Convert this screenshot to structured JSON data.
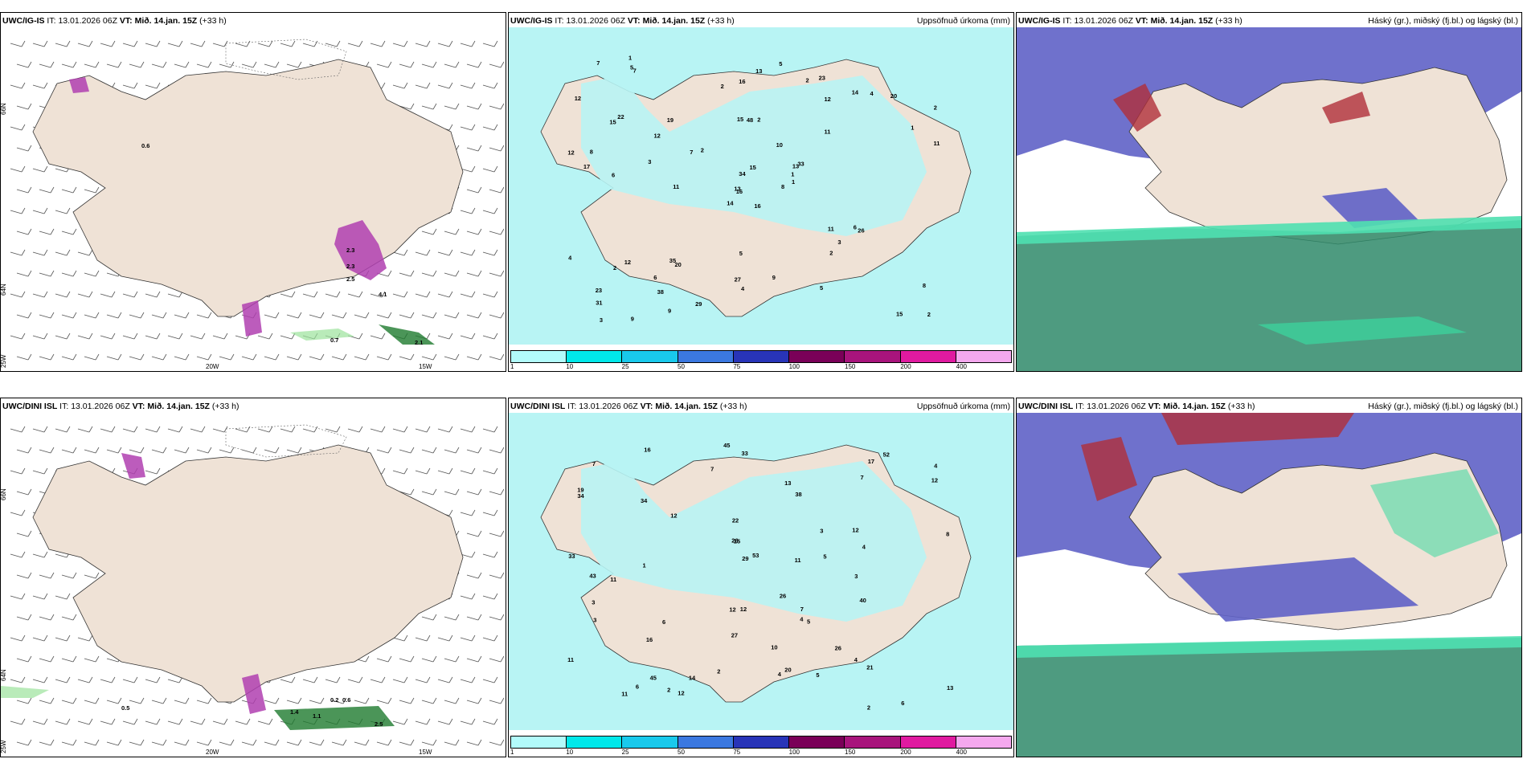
{
  "rows": [
    {
      "model": "UWC/IG-IS",
      "it_label": "IT:",
      "it_value": "13.01.2026 06Z",
      "vt_label": "VT:",
      "vt_value": "Mið. 14.jan. 15Z",
      "lead": "(+33 h)",
      "precip_values": [
        "16",
        "15",
        "16",
        "23",
        "13",
        "20",
        "23",
        "2",
        "12",
        "8",
        "7",
        "2",
        "6",
        "2",
        "14",
        "11",
        "9",
        "15",
        "10",
        "12",
        "2",
        "31",
        "38",
        "48",
        "33",
        "26",
        "22",
        "16",
        "17",
        "11",
        "11",
        "13",
        "27",
        "34",
        "19",
        "14",
        "35",
        "15",
        "8",
        "6",
        "5",
        "7",
        "3",
        "2",
        "9",
        "12",
        "1",
        "3",
        "4",
        "1",
        "2",
        "1",
        "12",
        "3",
        "5",
        "6",
        "5",
        "7",
        "9",
        "20",
        "13",
        "11",
        "8",
        "12",
        "4",
        "1",
        "2",
        "2",
        "15",
        "4",
        "5",
        "29"
      ],
      "wind_labels": [
        "0.7",
        "2.1",
        "2.3",
        "2.3",
        "2.5",
        "4.1",
        "0.6"
      ],
      "lat_ticks": [
        "66N",
        "64N",
        "25W"
      ],
      "lon_ticks": [
        "20W",
        "15W"
      ]
    },
    {
      "model": "UWC/DINI ISL",
      "it_label": "IT:",
      "it_value": "13.01.2026 06Z",
      "vt_label": "VT:",
      "vt_value": "Mið. 14.jan. 15Z",
      "lead": "(+33 h)",
      "precip_values": [
        "33",
        "33",
        "12",
        "4",
        "19",
        "6",
        "11",
        "38",
        "22",
        "52",
        "53",
        "40",
        "45",
        "34",
        "34",
        "16",
        "20",
        "43",
        "26",
        "27",
        "26",
        "21",
        "12",
        "15",
        "45",
        "29",
        "7",
        "16",
        "12",
        "4",
        "3",
        "2",
        "11",
        "11",
        "2",
        "3",
        "4",
        "7",
        "14",
        "12",
        "10",
        "5",
        "13",
        "8",
        "12",
        "6",
        "7",
        "11",
        "2",
        "1",
        "3",
        "4",
        "5",
        "3",
        "5",
        "7",
        "4",
        "26",
        "17",
        "13",
        "12",
        "6"
      ],
      "wind_labels": [
        "0.5",
        "0.2",
        "0.6",
        "1.4",
        "1.1",
        "2.5"
      ],
      "lat_ticks": [
        "66N",
        "64N",
        "25W"
      ],
      "lon_ticks": [
        "20W",
        "15W"
      ]
    }
  ],
  "precip_title": "Uppsöfnuð úrkoma (mm)",
  "cloud_title": "Háský (gr.), miðský (fj.bl.) og lágský (bl.)",
  "colorbar": {
    "labels": [
      "1",
      "10",
      "25",
      "50",
      "75",
      "100",
      "150",
      "200",
      "400"
    ],
    "colors": [
      "#b2fbfb",
      "#00e8ea",
      "#19c9ec",
      "#3b78e0",
      "#2834b8",
      "#7a0058",
      "#a8147c",
      "#e01aa0",
      "#f4a8ee"
    ]
  },
  "colors": {
    "land": "#efe2d6",
    "sea_precip": "#b8f4f4",
    "cloud_high": "#5f62c6",
    "cloud_low": "#2f8a6a",
    "snow_magenta": "#b040b0",
    "rain_green": "#1e7a2e"
  }
}
